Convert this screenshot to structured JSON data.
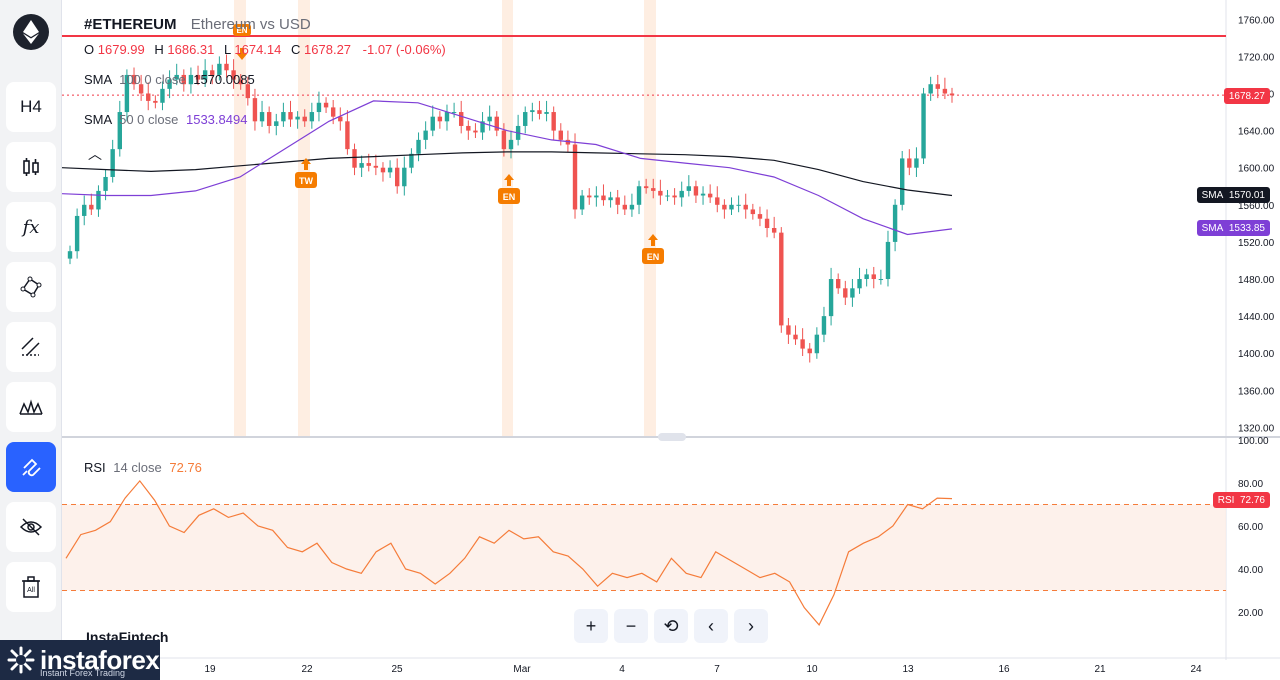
{
  "toolbar": {
    "logo_icon": "ethereum-icon",
    "tools": [
      {
        "name": "timeframe-h4-button",
        "label": "H4"
      },
      {
        "name": "candle-type-button",
        "label": ""
      },
      {
        "name": "indicators-button",
        "label": "fx"
      },
      {
        "name": "shapes-button",
        "label": ""
      },
      {
        "name": "lines-button",
        "label": ""
      },
      {
        "name": "patterns-button",
        "label": ""
      },
      {
        "name": "magnet-button",
        "label": ""
      },
      {
        "name": "hide-drawings-button",
        "label": ""
      },
      {
        "name": "delete-drawings-button",
        "label": ""
      }
    ]
  },
  "header": {
    "symbol": "#ETHEREUM",
    "description": "Ethereum vs USD",
    "o_label": "O",
    "o_value": "1679.99",
    "h_label": "H",
    "h_value": "1686.31",
    "l_label": "L",
    "l_value": "1674.14",
    "c_label": "C",
    "c_value": "1678.27",
    "change": "-1.07 (-0.06%)"
  },
  "indicators": {
    "sma100": {
      "name": "SMA",
      "params": "100  0  close",
      "value": "1570.0085"
    },
    "sma50": {
      "name": "SMA",
      "params": "50  0  close",
      "value": "1533.8494"
    },
    "rsi": {
      "name": "RSI",
      "params": "14  close",
      "value": "72.76"
    }
  },
  "price_axis": {
    "ticks": [
      "1760.00",
      "1720.00",
      "1680.00",
      "1640.00",
      "1600.00",
      "1560.00",
      "1520.00",
      "1480.00",
      "1440.00",
      "1400.00",
      "1360.00",
      "1320.00"
    ],
    "current_label": "1678.27",
    "sma100_tag": {
      "name": "SMA",
      "value": "1570.01"
    },
    "sma50_tag": {
      "name": "SMA",
      "value": "1533.85"
    }
  },
  "rsi_axis": {
    "ticks": [
      "100.00",
      "80.00",
      "60.00",
      "40.00",
      "20.00"
    ],
    "tag": {
      "name": "RSI",
      "value": "72.76"
    }
  },
  "time_axis": {
    "ticks": [
      "19",
      "22",
      "25",
      "Mar",
      "4",
      "7",
      "10",
      "13",
      "16",
      "21",
      "24"
    ]
  },
  "markers": [
    {
      "label": "TW",
      "direction": "up"
    },
    {
      "label": "EN",
      "direction": "up"
    },
    {
      "label": "EN",
      "direction": "up"
    },
    {
      "label": "EN",
      "direction": "down"
    }
  ],
  "nav": {
    "zoom_in": "+",
    "zoom_out": "−",
    "reset": "⟲",
    "back": "‹",
    "forward": "›"
  },
  "watermark": "InstaFintech",
  "brand": {
    "name": "instaforex",
    "tagline": "Instant Forex Trading"
  },
  "colors": {
    "up": "#26a69a",
    "down": "#ef5350",
    "sma100": "#131722",
    "sma50": "#7e3fd6",
    "rsi": "#f57c3a",
    "resistance": "#f23645"
  },
  "chart_data": {
    "type": "candlestick",
    "title": "#ETHEREUM Ethereum vs USD",
    "ylim": [
      1300,
      1770
    ],
    "resistance": 1742,
    "current_price": 1678.27,
    "candles_close": [
      1510,
      1548,
      1560,
      1555,
      1575,
      1590,
      1620,
      1660,
      1700,
      1690,
      1680,
      1672,
      1670,
      1685,
      1695,
      1700,
      1690,
      1700,
      1695,
      1705,
      1700,
      1712,
      1705,
      1695,
      1690,
      1675,
      1650,
      1660,
      1645,
      1650,
      1660,
      1652,
      1655,
      1650,
      1660,
      1670,
      1665,
      1655,
      1650,
      1620,
      1600,
      1605,
      1602,
      1600,
      1595,
      1600,
      1580,
      1600,
      1615,
      1630,
      1640,
      1655,
      1650,
      1660,
      1660,
      1645,
      1640,
      1638,
      1650,
      1655,
      1640,
      1620,
      1630,
      1645,
      1660,
      1662,
      1658,
      1660,
      1640,
      1630,
      1625,
      1555,
      1570,
      1568,
      1570,
      1565,
      1568,
      1560,
      1555,
      1560,
      1580,
      1578,
      1575,
      1570,
      1570,
      1568,
      1575,
      1580,
      1570,
      1572,
      1568,
      1560,
      1555,
      1560,
      1560,
      1555,
      1550,
      1545,
      1535,
      1530,
      1430,
      1420,
      1415,
      1405,
      1400,
      1420,
      1440,
      1480,
      1470,
      1460,
      1470,
      1480,
      1485,
      1480,
      1480,
      1520,
      1560,
      1610,
      1600,
      1610,
      1680,
      1690,
      1685,
      1680,
      1678
    ],
    "sma100_line": [
      1600,
      1598,
      1596,
      1598,
      1602,
      1606,
      1610,
      1612,
      1614,
      1616,
      1617,
      1617,
      1616,
      1615,
      1614,
      1612,
      1608,
      1598,
      1585,
      1576,
      1570
    ],
    "sma50_line": [
      1572,
      1570,
      1570,
      1575,
      1590,
      1620,
      1650,
      1672,
      1670,
      1655,
      1640,
      1630,
      1625,
      1610,
      1605,
      1600,
      1590,
      1570,
      1545,
      1528,
      1534
    ],
    "rsi_values": [
      45,
      56,
      58,
      62,
      73,
      81,
      72,
      60,
      57,
      65,
      68,
      64,
      66,
      60,
      58,
      50,
      48,
      52,
      43,
      40,
      38,
      48,
      52,
      40,
      38,
      33,
      38,
      45,
      55,
      52,
      58,
      54,
      55,
      48,
      46,
      40,
      32,
      38,
      36,
      38,
      34,
      45,
      38,
      36,
      48,
      44,
      40,
      36,
      38,
      34,
      22,
      14,
      28,
      48,
      52,
      55,
      60,
      70,
      68,
      73,
      72.76
    ],
    "rsi_range": [
      0,
      100
    ],
    "rsi_levels": [
      70,
      30
    ]
  }
}
